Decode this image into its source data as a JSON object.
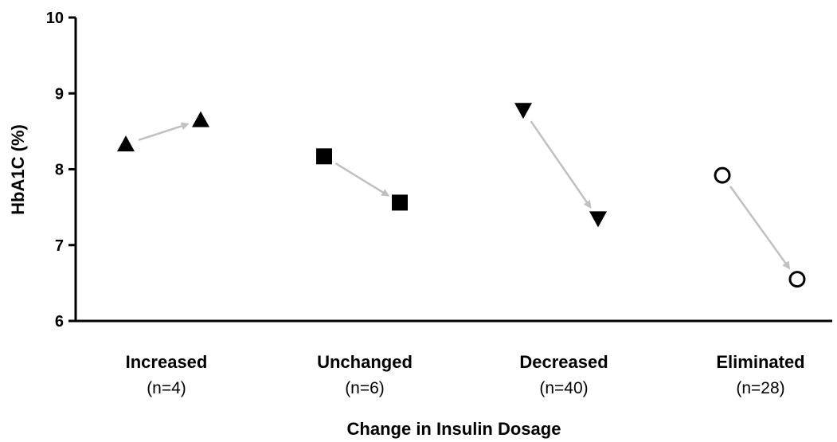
{
  "chart_data": {
    "type": "scatter",
    "xlabel": "Change in Insulin Dosage",
    "ylabel": "HbA1C (%)",
    "ylim": [
      6,
      10
    ],
    "yticks": [
      "6",
      "7",
      "8",
      "9",
      "10"
    ],
    "grid": false,
    "groups": [
      {
        "label": "Increased",
        "n_label": "(n=4)",
        "marker": "triangle-up",
        "fill": "#000000",
        "before": 8.33,
        "after": 8.65
      },
      {
        "label": "Unchanged",
        "n_label": "(n=6)",
        "marker": "square",
        "fill": "#000000",
        "before": 8.17,
        "after": 7.56
      },
      {
        "label": "Decreased",
        "n_label": "(n=40)",
        "marker": "triangle-down",
        "fill": "#000000",
        "before": 8.78,
        "after": 7.35
      },
      {
        "label": "Eliminated",
        "n_label": "(n=28)",
        "marker": "circle-open",
        "fill": "#ffffff",
        "before": 7.92,
        "after": 6.55
      }
    ],
    "arrow_color": "#c0c0c0"
  }
}
